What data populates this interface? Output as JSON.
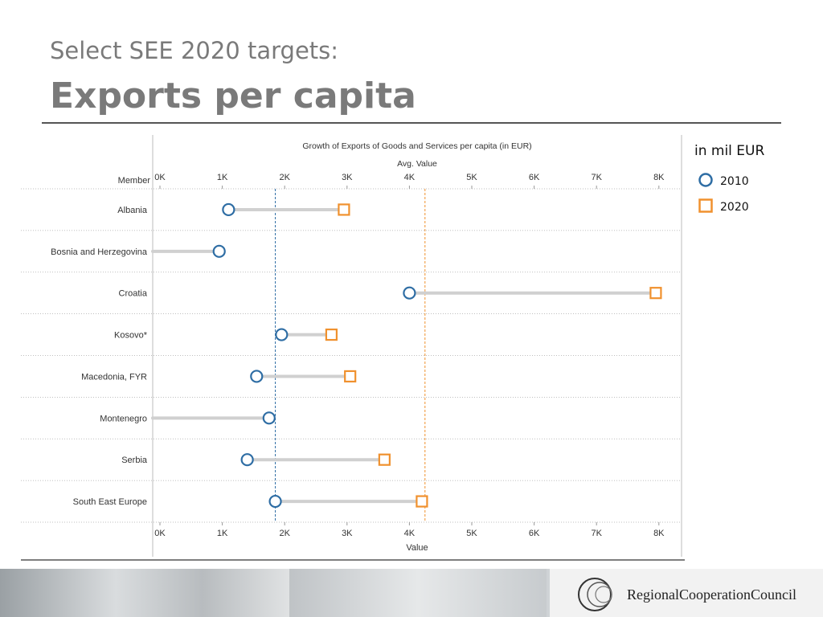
{
  "header": {
    "subtitle": "Select SEE 2020 targets:",
    "title": "Exports per capita"
  },
  "legend": {
    "title": "in mil EUR",
    "items": [
      {
        "label": "2010",
        "marker": "circle",
        "color": "#2e6da4"
      },
      {
        "label": "2020",
        "marker": "square",
        "color": "#f0912e"
      }
    ]
  },
  "footer": {
    "logo_text": "RegionalCooperationCouncil"
  },
  "chart_data": {
    "type": "scatter",
    "title": "Growth of Exports of Goods and Services per capita (in EUR)",
    "top_axis_label": "Avg. Value",
    "xlabel": "Value",
    "row_header": "Member",
    "xlim": [
      0,
      8300
    ],
    "xticks": [
      0,
      1000,
      2000,
      3000,
      4000,
      5000,
      6000,
      7000,
      8000
    ],
    "xtick_labels": [
      "0K",
      "1K",
      "2K",
      "3K",
      "4K",
      "5K",
      "6K",
      "7K",
      "8K"
    ],
    "categories": [
      "Albania",
      "Bosnia and Herzegovina",
      "Croatia",
      "Kosovo*",
      "Macedonia, FYR",
      "Montenegro",
      "Serbia",
      "South East Europe"
    ],
    "series": [
      {
        "name": "2010",
        "values": [
          1100,
          950,
          4000,
          1950,
          1550,
          1750,
          1400,
          1850
        ]
      },
      {
        "name": "2020",
        "values": [
          2950,
          null,
          7950,
          2750,
          3050,
          null,
          3600,
          4200
        ]
      }
    ],
    "reference_lines": [
      {
        "series": "2010",
        "value": 1850,
        "color": "#2e6da4"
      },
      {
        "series": "2020",
        "value": 4250,
        "color": "#f0912e"
      }
    ],
    "colors": {
      "2010": "#2e6da4",
      "2020": "#f0912e",
      "connector": "#d0d0d0"
    },
    "grid": false,
    "legend_position": "right"
  }
}
